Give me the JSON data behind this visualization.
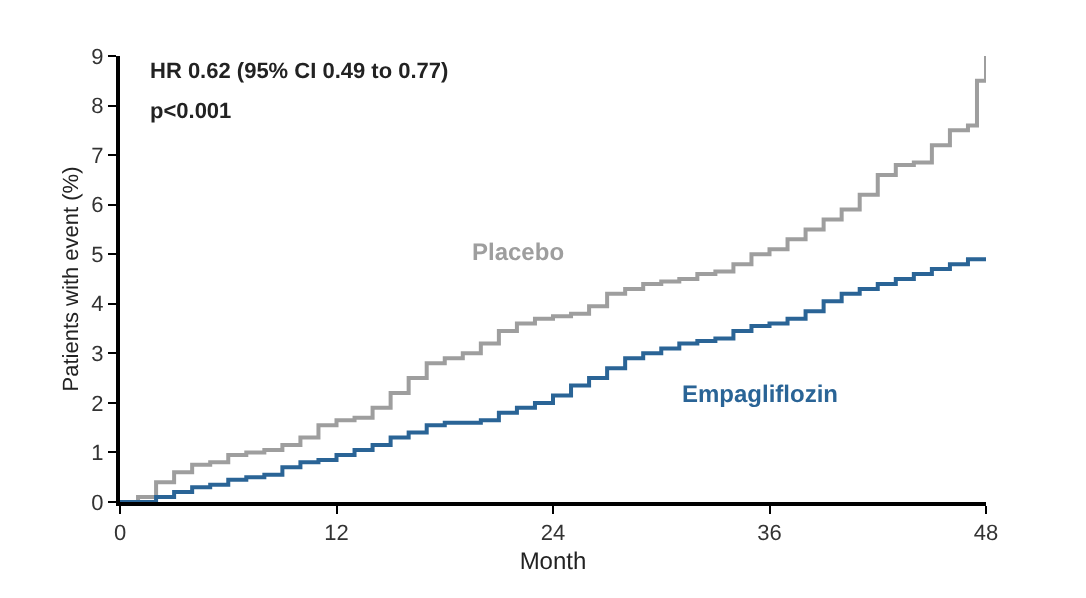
{
  "chart_data": {
    "type": "step",
    "xlabel": "Month",
    "ylabel": "Patients with event (%)",
    "xlim": [
      0,
      48
    ],
    "xticks": [
      0,
      12,
      24,
      36,
      48
    ],
    "ylim": [
      0,
      9
    ],
    "yticks": [
      0,
      1,
      2,
      3,
      4,
      5,
      6,
      7,
      8,
      9
    ],
    "legend": false,
    "marker": "none",
    "line_style": "solid",
    "annotations": [
      "HR 0.62 (95% CI 0.49 to 0.77)",
      "p<0.001"
    ],
    "series": [
      {
        "name": "Placebo",
        "color": "#9e9e9e",
        "x": [
          0,
          1,
          2,
          3,
          4,
          5,
          6,
          7,
          8,
          9,
          10,
          11,
          12,
          13,
          14,
          15,
          16,
          17,
          18,
          19,
          20,
          21,
          22,
          23,
          24,
          25,
          26,
          27,
          28,
          29,
          30,
          31,
          32,
          33,
          34,
          35,
          36,
          37,
          38,
          39,
          40,
          41,
          42,
          43,
          44,
          45,
          46,
          47,
          47.5,
          48
        ],
        "values": [
          0,
          0.1,
          0.4,
          0.6,
          0.75,
          0.8,
          0.95,
          1.0,
          1.05,
          1.15,
          1.3,
          1.55,
          1.65,
          1.7,
          1.9,
          2.2,
          2.5,
          2.8,
          2.9,
          3.0,
          3.2,
          3.45,
          3.6,
          3.7,
          3.75,
          3.8,
          3.95,
          4.2,
          4.3,
          4.4,
          4.45,
          4.5,
          4.6,
          4.65,
          4.8,
          5.0,
          5.1,
          5.3,
          5.5,
          5.7,
          5.9,
          6.2,
          6.6,
          6.8,
          6.85,
          7.2,
          7.5,
          7.6,
          8.5,
          9.0
        ]
      },
      {
        "name": "Empagliflozin",
        "color": "#2a6496",
        "x": [
          0,
          2,
          3,
          4,
          5,
          6,
          7,
          8,
          9,
          10,
          11,
          12,
          13,
          14,
          15,
          16,
          17,
          18,
          19,
          20,
          21,
          22,
          23,
          24,
          25,
          26,
          27,
          28,
          29,
          30,
          31,
          32,
          33,
          34,
          35,
          36,
          37,
          38,
          39,
          40,
          41,
          42,
          43,
          44,
          45,
          46,
          47,
          48
        ],
        "values": [
          0,
          0.1,
          0.2,
          0.3,
          0.35,
          0.45,
          0.5,
          0.55,
          0.7,
          0.8,
          0.85,
          0.95,
          1.05,
          1.15,
          1.3,
          1.4,
          1.55,
          1.6,
          1.6,
          1.65,
          1.8,
          1.9,
          2.0,
          2.15,
          2.35,
          2.5,
          2.7,
          2.9,
          3.0,
          3.1,
          3.2,
          3.25,
          3.3,
          3.45,
          3.55,
          3.6,
          3.7,
          3.85,
          4.05,
          4.2,
          4.3,
          4.4,
          4.5,
          4.6,
          4.7,
          4.8,
          4.9,
          4.9
        ]
      }
    ]
  }
}
